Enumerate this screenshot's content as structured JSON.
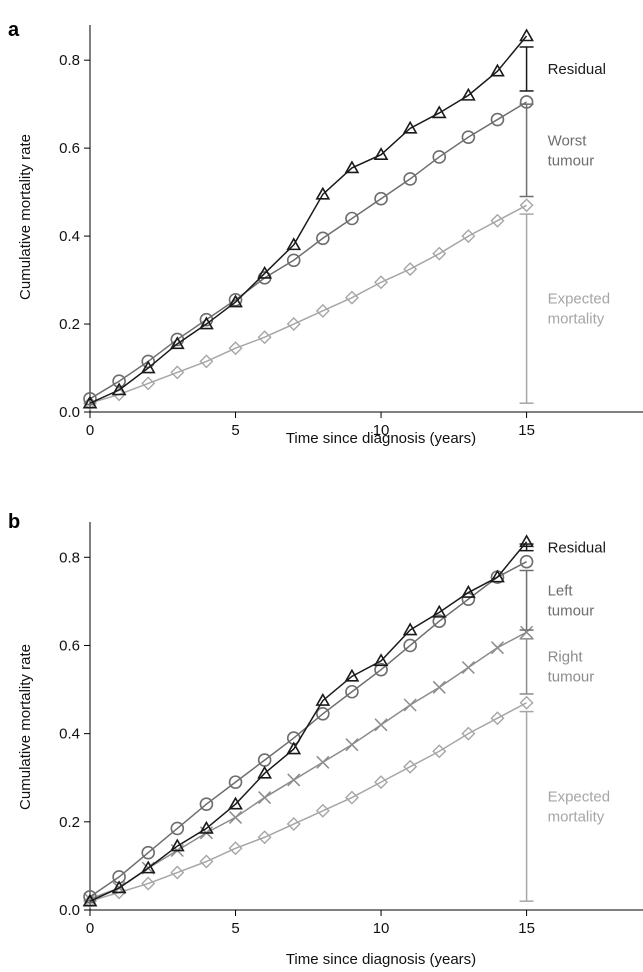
{
  "chart_data": [
    {
      "type": "line",
      "panel": "a",
      "xlabel": "Time since diagnosis (years)",
      "ylabel": "Cumulative mortality rate",
      "xlim": [
        0,
        19
      ],
      "ylim": [
        0,
        0.88
      ],
      "x_ticks": [
        0,
        5,
        10,
        15
      ],
      "x_tick_labels": [
        "0",
        "5",
        "10",
        "15"
      ],
      "y_ticks": [
        0.0,
        0.2,
        0.4,
        0.6,
        0.8
      ],
      "y_tick_labels": [
        "0.0",
        "0.2",
        "0.4",
        "0.6",
        "0.8"
      ],
      "grid": false,
      "x": [
        0,
        1,
        2,
        3,
        4,
        5,
        6,
        7,
        8,
        9,
        10,
        11,
        12,
        13,
        14,
        15
      ],
      "series": [
        {
          "marker": "triangle",
          "color": "#1a1a1a",
          "values": [
            0.02,
            0.05,
            0.1,
            0.155,
            0.2,
            0.25,
            0.315,
            0.38,
            0.495,
            0.555,
            0.585,
            0.645,
            0.68,
            0.72,
            0.775,
            0.855
          ]
        },
        {
          "marker": "circle",
          "color": "#6e6e6e",
          "values": [
            0.03,
            0.07,
            0.115,
            0.165,
            0.21,
            0.255,
            0.305,
            0.345,
            0.395,
            0.44,
            0.485,
            0.53,
            0.58,
            0.625,
            0.665,
            0.705
          ]
        },
        {
          "marker": "diamond",
          "color": "#a6a6a6",
          "values": [
            0.02,
            0.04,
            0.065,
            0.09,
            0.115,
            0.145,
            0.17,
            0.2,
            0.23,
            0.26,
            0.295,
            0.325,
            0.36,
            0.4,
            0.435,
            0.47
          ]
        }
      ],
      "annotations": [
        {
          "label": "Residual",
          "color": "#1a1a1a",
          "from": 0.73,
          "to": 0.83
        },
        {
          "label": "Worst\ntumour",
          "color": "#6e6e6e",
          "from": 0.49,
          "to": 0.7
        },
        {
          "label": "Expected\nmortality",
          "color": "#a6a6a6",
          "from": 0.02,
          "to": 0.45
        }
      ]
    },
    {
      "type": "line",
      "panel": "b",
      "xlabel": "Time since diagnosis (years)",
      "ylabel": "Cumulative mortality rate",
      "xlim": [
        0,
        19
      ],
      "ylim": [
        0,
        0.88
      ],
      "x_ticks": [
        0,
        5,
        10,
        15
      ],
      "x_tick_labels": [
        "0",
        "5",
        "10",
        "15"
      ],
      "y_ticks": [
        0.0,
        0.2,
        0.4,
        0.6,
        0.8
      ],
      "y_tick_labels": [
        "0.0",
        "0.2",
        "0.4",
        "0.6",
        "0.8"
      ],
      "grid": false,
      "x": [
        0,
        1,
        2,
        3,
        4,
        5,
        6,
        7,
        8,
        9,
        10,
        11,
        12,
        13,
        14,
        15
      ],
      "series": [
        {
          "marker": "triangle",
          "color": "#1a1a1a",
          "values": [
            0.02,
            0.05,
            0.095,
            0.145,
            0.185,
            0.24,
            0.31,
            0.365,
            0.475,
            0.53,
            0.565,
            0.635,
            0.675,
            0.72,
            0.755,
            0.835
          ]
        },
        {
          "marker": "circle",
          "color": "#6e6e6e",
          "values": [
            0.03,
            0.075,
            0.13,
            0.185,
            0.24,
            0.29,
            0.34,
            0.39,
            0.445,
            0.495,
            0.545,
            0.6,
            0.655,
            0.705,
            0.755,
            0.79
          ]
        },
        {
          "marker": "cross",
          "color": "#8c8c8c",
          "values": [
            0.025,
            0.05,
            0.095,
            0.135,
            0.175,
            0.21,
            0.255,
            0.295,
            0.335,
            0.375,
            0.42,
            0.465,
            0.505,
            0.55,
            0.595,
            0.63
          ]
        },
        {
          "marker": "diamond",
          "color": "#a6a6a6",
          "values": [
            0.02,
            0.04,
            0.06,
            0.085,
            0.11,
            0.14,
            0.165,
            0.195,
            0.225,
            0.255,
            0.29,
            0.325,
            0.36,
            0.4,
            0.435,
            0.47
          ]
        }
      ],
      "annotations": [
        {
          "label": "Residual",
          "color": "#1a1a1a",
          "from": 0.815,
          "to": 0.83
        },
        {
          "label": "Left\ntumour",
          "color": "#6e6e6e",
          "from": 0.635,
          "to": 0.77
        },
        {
          "label": "Right\ntumour",
          "color": "#8c8c8c",
          "from": 0.49,
          "to": 0.615
        },
        {
          "label": "Expected\nmortality",
          "color": "#a6a6a6",
          "from": 0.02,
          "to": 0.45
        }
      ]
    }
  ]
}
